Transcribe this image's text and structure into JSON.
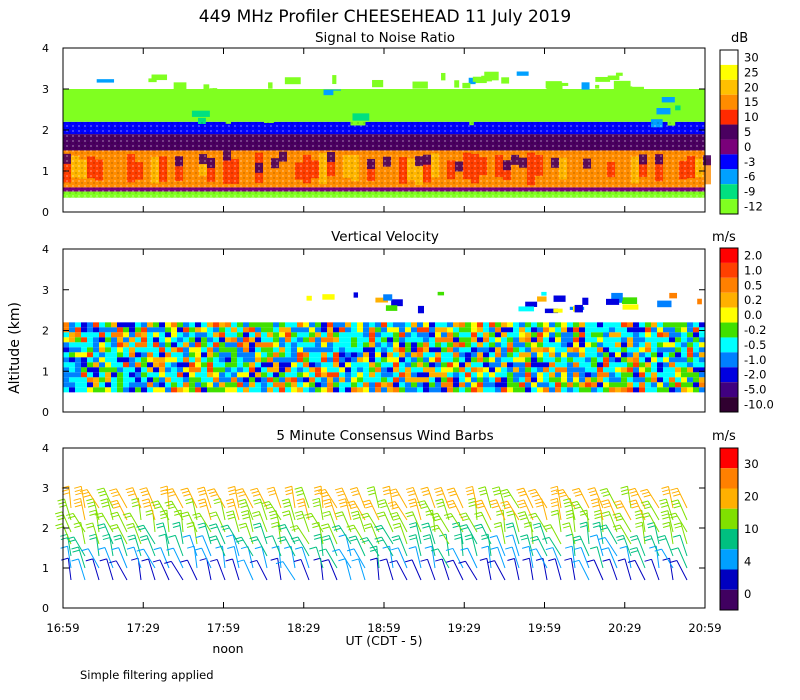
{
  "figure": {
    "title": "449 MHz Profiler CHEESEHEAD 11 July 2019",
    "ylabel": "Altitude (km)",
    "xlabel": "UT  (CDT - 5)",
    "noon_label": "noon",
    "footnote": "Simple filtering applied",
    "x_ticks": [
      "16:59",
      "17:29",
      "17:59",
      "18:29",
      "18:59",
      "19:29",
      "19:59",
      "20:29",
      "20:59"
    ],
    "y_ticks": [
      "0",
      "1",
      "2",
      "3",
      "4"
    ]
  },
  "chart_data": [
    {
      "type": "heatmap",
      "title": "Signal to Noise Ratio",
      "colorbar_unit": "dB",
      "colorbar_labels": [
        "30",
        "25",
        "20",
        "15",
        "10",
        "5",
        "0",
        "-3",
        "-6",
        "-9",
        "-12"
      ],
      "colorbar_colors": [
        "#ffffff",
        "#ffff00",
        "#ffc000",
        "#ff8c00",
        "#ff2a00",
        "#4a0060",
        "#7a007a",
        "#0000ff",
        "#00a0ff",
        "#00e080",
        "#80ff20"
      ],
      "x_range": [
        "16:59",
        "20:59"
      ],
      "ylim": [
        0,
        4
      ],
      "layers": [
        {
          "from": 0.35,
          "to": 0.5,
          "value": -12
        },
        {
          "from": 0.5,
          "to": 0.6,
          "value": 0
        },
        {
          "from": 0.6,
          "to": 1.5,
          "value": 15
        },
        {
          "from": 1.5,
          "to": 1.9,
          "value": 5
        },
        {
          "from": 1.9,
          "to": 2.2,
          "value": -3
        },
        {
          "from": 2.2,
          "to": 3.0,
          "value": -12
        }
      ]
    },
    {
      "type": "heatmap",
      "title": "Vertical Velocity",
      "colorbar_unit": "m/s",
      "colorbar_labels": [
        "2.0",
        "1.0",
        "0.5",
        "0.2",
        "0.0",
        "-0.2",
        "-0.5",
        "-1.0",
        "-2.0",
        "-5.0",
        "-10.0"
      ],
      "colorbar_colors": [
        "#ff0000",
        "#ff4000",
        "#ff8000",
        "#ffb000",
        "#ffff00",
        "#40e000",
        "#00ffff",
        "#0080ff",
        "#0000e0",
        "#400080",
        "#300030"
      ],
      "x_range": [
        "16:59",
        "20:59"
      ],
      "ylim": [
        0,
        4
      ],
      "data_extent_km": [
        0.5,
        2.2
      ]
    },
    {
      "type": "wind_barbs",
      "title": "5 Minute Consensus Wind Barbs",
      "colorbar_unit": "m/s",
      "colorbar_labels": [
        "30",
        "20",
        "10",
        "4",
        "0"
      ],
      "colorbar_colors": [
        "#ff0000",
        "#ff8000",
        "#ffb000",
        "#80e000",
        "#00c080",
        "#00a0ff",
        "#0000c0",
        "#400060"
      ],
      "x_range": [
        "16:59",
        "20:59"
      ],
      "ylim": [
        0,
        4
      ],
      "levels_km": [
        0.7,
        1.0,
        1.3,
        1.6,
        1.9,
        2.2,
        2.5
      ],
      "speed_by_level_ms": [
        3,
        6,
        8,
        10,
        12,
        14,
        15
      ]
    }
  ]
}
